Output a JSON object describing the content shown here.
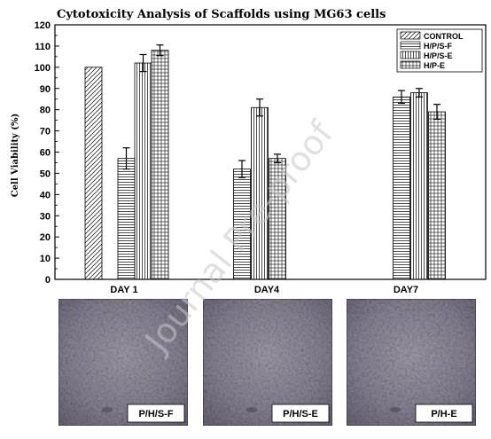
{
  "chart_data": {
    "type": "bar",
    "title": "Cytotoxicity Analysis of Scaffolds using MG63 cells",
    "xlabel": "",
    "ylabel": "Cell Viability (%)",
    "ylim": [
      0,
      120
    ],
    "yticks": [
      "0",
      "10",
      "20",
      "30",
      "40",
      "50",
      "60",
      "70",
      "80",
      "90",
      "100",
      "110",
      "120"
    ],
    "categories": [
      "DAY 1",
      "DAY4",
      "DAY7"
    ],
    "series": [
      {
        "name": "CONTROL",
        "pattern": "diagonal",
        "values": [
          100,
          null,
          null
        ],
        "errors": [
          0,
          null,
          null
        ]
      },
      {
        "name": "H/P/S-F",
        "pattern": "horizontal",
        "values": [
          57,
          52,
          86
        ],
        "errors": [
          5,
          4,
          3
        ]
      },
      {
        "name": "H/P/S-E",
        "pattern": "vertical",
        "values": [
          102,
          81,
          88
        ],
        "errors": [
          4,
          4,
          2
        ]
      },
      {
        "name": "H/P-E",
        "pattern": "grid",
        "values": [
          108,
          57,
          79
        ],
        "errors": [
          2.5,
          2,
          3.5
        ]
      }
    ],
    "legend_position": "top-right",
    "grid": false,
    "watermark": "Journal Pre-proof"
  },
  "micrographs": [
    {
      "label": "P/H/S-F"
    },
    {
      "label": "P/H/S-E"
    },
    {
      "label": "P/H-E"
    }
  ],
  "colors": {
    "bar_stroke": "#000000",
    "photo_bg": "#8a8590",
    "photo_dark": "#5e5968",
    "photo_light": "#b4b0ba"
  }
}
